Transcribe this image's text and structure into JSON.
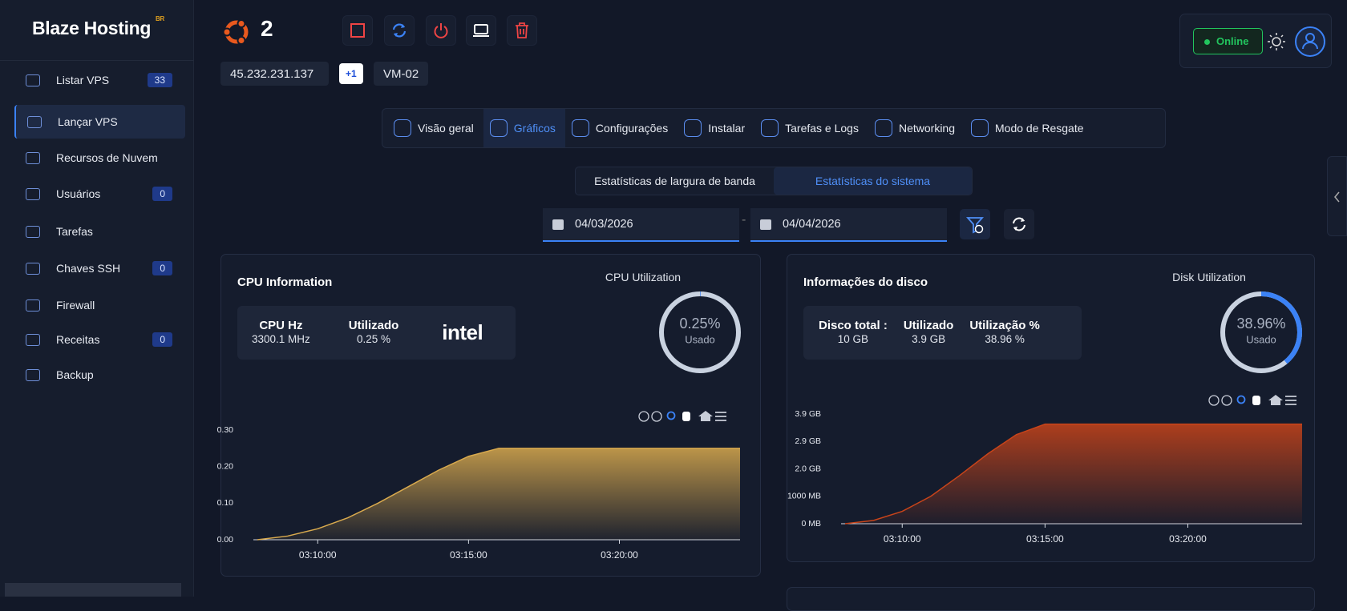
{
  "sidebar": {
    "logo": "Blaze Hosting",
    "logo_badge": "BR",
    "items": [
      {
        "label": "Listar VPS",
        "badge": 33
      },
      {
        "label": "Lançar VPS"
      },
      {
        "label": "Recursos de Nuvem"
      },
      {
        "label": "Usuários",
        "badge": 0
      },
      {
        "label": "Tarefas"
      },
      {
        "label": "Chaves SSH",
        "badge": 0
      },
      {
        "label": "Firewall"
      },
      {
        "label": "Receitas",
        "badge": 0
      },
      {
        "label": "Backup"
      }
    ]
  },
  "header": {
    "server_number": 2,
    "ip": "45.232.231.137",
    "extra_ips": "+1",
    "vm_name": "VM-02",
    "status": "Online"
  },
  "tabs": [
    "Visão geral",
    "Gráficos",
    "Configurações",
    "Instalar",
    "Tarefas e Logs",
    "Networking",
    "Modo de Resgate"
  ],
  "subtabs": [
    "Estatísticas de largura de banda",
    "Estatísticas do sistema"
  ],
  "date_range": {
    "start": "04/03/2026",
    "end": "04/04/2026"
  },
  "cpu_card": {
    "title": "CPU Information",
    "stats": [
      {
        "label": "CPU Hz",
        "value": "3300.1 MHz"
      },
      {
        "label": "Utilizado",
        "value": "0.25 %"
      }
    ],
    "brand": "intel",
    "utilization": {
      "title": "CPU Utilization",
      "value": 0.25,
      "label": "0.25%",
      "caption": "Usado"
    }
  },
  "disk_card": {
    "title": "Informações do disco",
    "stats": [
      {
        "label": "Disco total :",
        "value": "10 GB"
      },
      {
        "label": "Utilizado",
        "value": "3.9 GB"
      },
      {
        "label": "Utilização %",
        "value": "38.96 %"
      }
    ],
    "utilization": {
      "title": "Disk Utilization",
      "value": 38.96,
      "label": "38.96%",
      "caption": "Usado"
    }
  },
  "chart_data": [
    {
      "type": "area",
      "x": [
        "03:08:00",
        "03:09:00",
        "03:10:00",
        "03:11:00",
        "03:12:00",
        "03:13:00",
        "03:14:00",
        "03:15:00",
        "03:16:00",
        "03:17:00",
        "03:18:00",
        "03:19:00",
        "03:20:00",
        "03:21:00",
        "03:22:00",
        "03:23:00",
        "03:24:00"
      ],
      "series": [
        {
          "color": "#d9aa4e",
          "values": [
            0,
            0.01,
            0.03,
            0.06,
            0.1,
            0.145,
            0.19,
            0.228,
            0.25,
            0.25,
            0.25,
            0.25,
            0.25,
            0.25,
            0.25,
            0.25,
            0.25
          ]
        }
      ],
      "xlim": [
        "03:08:00",
        "03:24:00"
      ],
      "xticks": [
        "03:10:00",
        "03:15:00",
        "03:20:00"
      ],
      "ylim": [
        0,
        0.3
      ],
      "yticks": [
        {
          "value": 0,
          "label": "0.00"
        },
        {
          "value": 0.1,
          "label": "0.10"
        },
        {
          "value": 0.2,
          "label": "0.20"
        },
        {
          "value": 0.3,
          "label": "0.30"
        }
      ]
    },
    {
      "type": "area",
      "x": [
        "03:08:00",
        "03:09:00",
        "03:10:00",
        "03:11:00",
        "03:12:00",
        "03:13:00",
        "03:14:00",
        "03:15:00",
        "03:16:00",
        "03:17:00",
        "03:18:00",
        "03:19:00",
        "03:20:00",
        "03:21:00",
        "03:22:00",
        "03:23:00",
        "03:24:00"
      ],
      "series": [
        {
          "color": "#c8441a",
          "values": [
            0,
            120,
            450,
            1000,
            1750,
            2550,
            3250,
            3630,
            3630,
            3630,
            3630,
            3630,
            3630,
            3630,
            3630,
            3630,
            3630
          ]
        }
      ],
      "xlim": [
        "03:08:00",
        "03:24:00"
      ],
      "xticks": [
        "03:10:00",
        "03:15:00",
        "03:20:00"
      ],
      "ylim": [
        0,
        4000
      ],
      "yticks": [
        {
          "value": 0,
          "label": "0 MB"
        },
        {
          "value": 1000,
          "label": "1000 MB"
        },
        {
          "value": 2000,
          "label": "2.0 GB"
        },
        {
          "value": 3000,
          "label": "2.9 GB"
        },
        {
          "value": 4000,
          "label": "3.9 GB"
        }
      ]
    }
  ]
}
